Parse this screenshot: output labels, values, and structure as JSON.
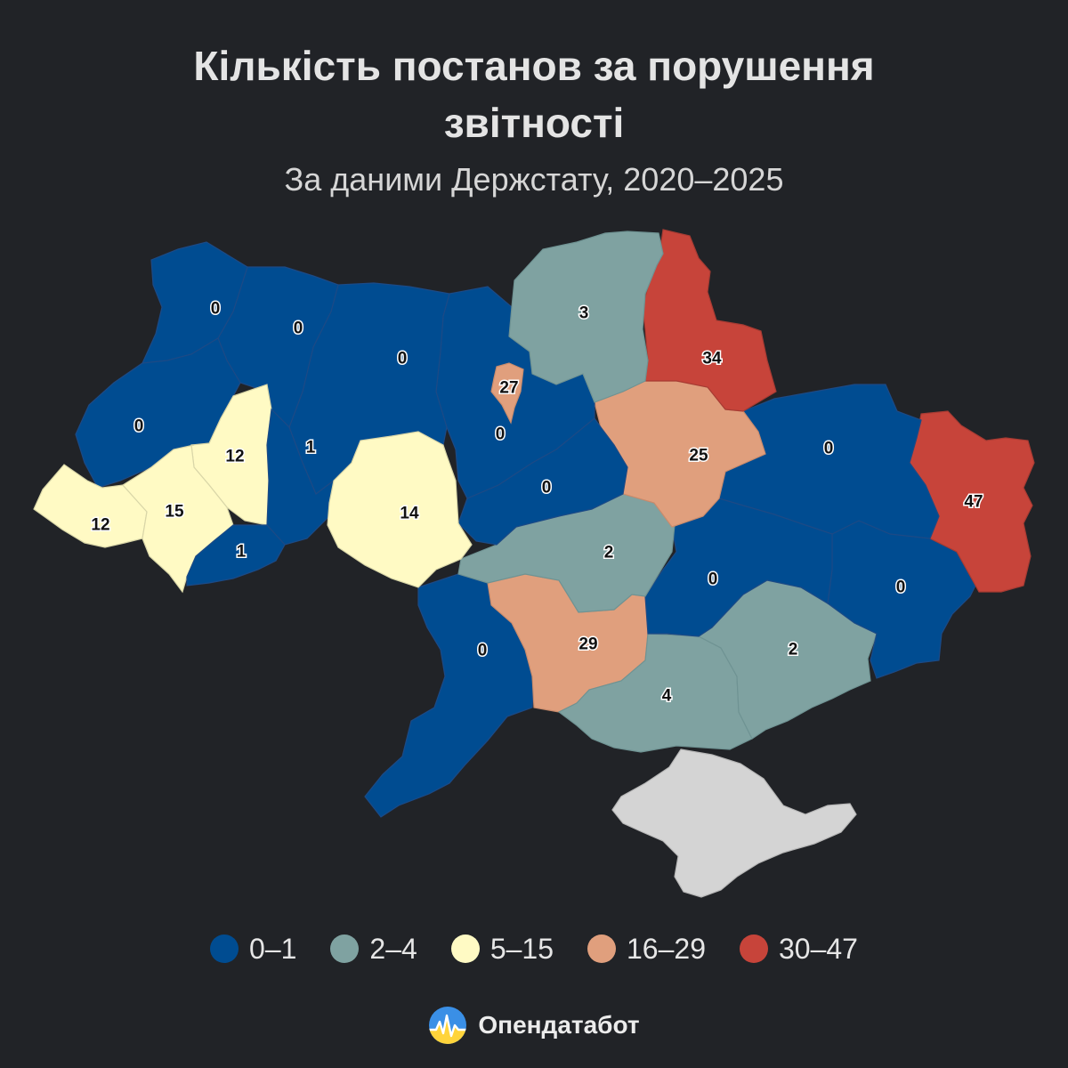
{
  "title_line1": "Кількість постанов за порушення",
  "title_line2": "звітності",
  "subtitle": "За даними Держстату, 2020–2025",
  "colors": {
    "background": "#212327",
    "bin_0_1": "#004c91",
    "bin_2_4": "#7fa2a1",
    "bin_5_15": "#fffac4",
    "bin_16_29": "#e09f7d",
    "bin_30_47": "#c7443a",
    "no_data": "#d4d4d4"
  },
  "legend": [
    {
      "label": "0–1",
      "color": "#004c91"
    },
    {
      "label": "2–4",
      "color": "#7fa2a1"
    },
    {
      "label": "5–15",
      "color": "#fffac4"
    },
    {
      "label": "16–29",
      "color": "#e09f7d"
    },
    {
      "label": "30–47",
      "color": "#c7443a"
    }
  ],
  "regions": {
    "volyn": "0",
    "rivne": "0",
    "zhytomyr": "0",
    "lviv": "0",
    "ternopil": "12",
    "khmelnytskyi": "1",
    "zakarpattia": "12",
    "ivano_frankivsk": "15",
    "chernivtsi": "1",
    "vinnytsia": "14",
    "chernihiv": "3",
    "sumy": "34",
    "kyiv_city": "27",
    "kyiv_oblast": "0",
    "cherkasy": "0",
    "poltava": "25",
    "kharkiv": "0",
    "luhansk": "47",
    "kirovohrad": "2",
    "dnipropetrovsk": "0",
    "donetsk": "0",
    "odesa": "0",
    "mykolaiv": "29",
    "kherson": "4",
    "zaporizhzhia": "2"
  },
  "brand": {
    "name": "Опендатабот",
    "logo": "opendatabot-logo"
  }
}
